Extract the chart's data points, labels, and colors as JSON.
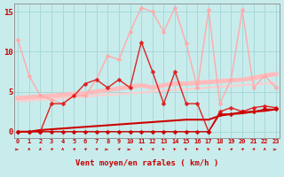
{
  "title": "",
  "xlabel": "Vent moyen/en rafales ( km/h )",
  "bg_color": "#c8ecec",
  "grid_color": "#a8d8d8",
  "x": [
    0,
    1,
    2,
    3,
    4,
    5,
    6,
    7,
    8,
    9,
    10,
    11,
    12,
    13,
    14,
    15,
    16,
    17,
    18,
    19,
    20,
    21,
    22,
    23
  ],
  "series": [
    {
      "name": "rafales_light_pink",
      "y": [
        11.5,
        7.0,
        4.5,
        4.0,
        3.5,
        4.5,
        4.5,
        6.5,
        9.5,
        9.0,
        12.5,
        15.5,
        15.0,
        12.5,
        15.5,
        11.0,
        5.5,
        15.2,
        3.5,
        6.5,
        15.2,
        5.5,
        7.0,
        5.5
      ],
      "color": "#ffaaaa",
      "lw": 1.0,
      "marker": "D",
      "ms": 2.5
    },
    {
      "name": "trend_light1",
      "y": [
        4.2,
        4.3,
        4.4,
        4.5,
        4.6,
        4.7,
        4.8,
        5.0,
        5.2,
        5.4,
        5.6,
        5.8,
        5.5,
        5.8,
        6.0,
        6.0,
        6.1,
        6.2,
        6.3,
        6.4,
        6.5,
        6.7,
        7.0,
        7.2
      ],
      "color": "#ffbbbb",
      "lw": 3.5,
      "marker": null,
      "ms": 0
    },
    {
      "name": "trend_light2",
      "y": [
        3.8,
        3.9,
        4.0,
        4.1,
        4.2,
        4.3,
        4.4,
        4.5,
        4.6,
        4.7,
        4.8,
        4.9,
        5.0,
        5.1,
        5.2,
        5.3,
        5.4,
        5.5,
        5.6,
        5.7,
        5.8,
        5.9,
        6.0,
        6.1
      ],
      "color": "#ffcccc",
      "lw": 1.5,
      "marker": null,
      "ms": 0
    },
    {
      "name": "rafales_dark",
      "y": [
        0.0,
        0.0,
        0.0,
        3.5,
        3.5,
        4.5,
        6.0,
        6.5,
        5.5,
        6.5,
        5.5,
        11.2,
        7.5,
        3.5,
        7.5,
        3.5,
        3.5,
        0.0,
        2.5,
        3.0,
        2.5,
        3.0,
        3.2,
        3.0
      ],
      "color": "#dd2222",
      "lw": 1.0,
      "marker": "D",
      "ms": 2.5
    },
    {
      "name": "vent_moyen_dark_line",
      "y": [
        0.0,
        0.0,
        0.2,
        0.3,
        0.4,
        0.5,
        0.6,
        0.7,
        0.8,
        0.9,
        1.0,
        1.1,
        1.2,
        1.3,
        1.4,
        1.5,
        1.5,
        1.5,
        2.0,
        2.2,
        2.3,
        2.5,
        2.6,
        2.8
      ],
      "color": "#cc0000",
      "lw": 1.5,
      "marker": null,
      "ms": 0
    },
    {
      "name": "vent_moyen_dark_pts",
      "y": [
        0.0,
        0.0,
        0.0,
        0.0,
        0.0,
        0.0,
        0.0,
        0.0,
        0.0,
        0.0,
        0.0,
        0.0,
        0.0,
        0.0,
        0.0,
        0.0,
        0.0,
        0.0,
        2.2,
        2.2,
        2.5,
        2.5,
        2.8,
        2.8
      ],
      "color": "#cc0000",
      "lw": 1.0,
      "marker": "D",
      "ms": 2.5
    }
  ],
  "ylim": [
    -0.8,
    16
  ],
  "yticks": [
    0,
    5,
    10,
    15
  ],
  "xticks": [
    0,
    1,
    2,
    3,
    4,
    5,
    6,
    7,
    8,
    9,
    10,
    11,
    12,
    13,
    14,
    15,
    16,
    17,
    18,
    19,
    20,
    21,
    22,
    23
  ],
  "tick_color": "#cc0000",
  "tick_fontsize": 5.0,
  "xlabel_fontsize": 6.5,
  "xlabel_color": "#cc0000"
}
